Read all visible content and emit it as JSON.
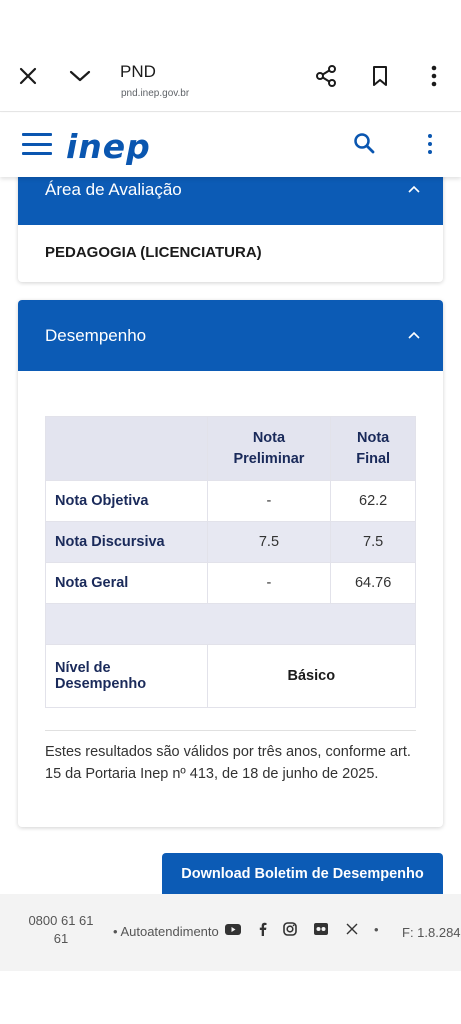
{
  "browser": {
    "title": "PND",
    "url": "pnd.inep.gov.br",
    "icons": [
      "close-icon",
      "chevron-down-icon",
      "share-icon",
      "bookmark-icon",
      "more-vertical-icon"
    ]
  },
  "header": {
    "logo": "inep",
    "icons": [
      "menu-icon",
      "search-icon",
      "more-vertical-icon"
    ],
    "brand_color": "#0a56b0"
  },
  "area_card": {
    "title": "Área de Avaliação",
    "value": "PEDAGOGIA (LICENCIATURA)"
  },
  "performance_card": {
    "title": "Desempenho",
    "table": {
      "columns": [
        "",
        "Nota Preliminar",
        "Nota Final"
      ],
      "column_headers": {
        "preliminar_1": "Nota",
        "preliminar_2": "Preliminar",
        "final_1": "Nota",
        "final_2": "Final"
      },
      "rows": [
        {
          "label": "Nota Objetiva",
          "preliminar": "-",
          "final": "62.2"
        },
        {
          "label": "Nota Discursiva",
          "preliminar": "7.5",
          "final": "7.5"
        },
        {
          "label": "Nota Geral",
          "preliminar": "-",
          "final": "64.76"
        }
      ],
      "level": {
        "label_1": "Nível de",
        "label_2": "Desempenho",
        "value": "Básico"
      }
    },
    "note": "Estes resultados são válidos por três anos, conforme art. 15 da Portaria Inep nº 413, de 18 de junho de 2025."
  },
  "download_button": "Download Boletim de Desempenho",
  "footer": {
    "phone": "0800 61 61 61",
    "link": "• Autoatendimento",
    "social_icons": [
      "youtube-icon",
      "facebook-icon",
      "instagram-icon",
      "flickr-icon",
      "x-icon"
    ],
    "dot": "•",
    "version": "F: 1.8.284"
  },
  "colors": {
    "primary": "#0c5bb5",
    "table_header": "#e3e4ef",
    "footer_bg": "#f3f3f3"
  }
}
